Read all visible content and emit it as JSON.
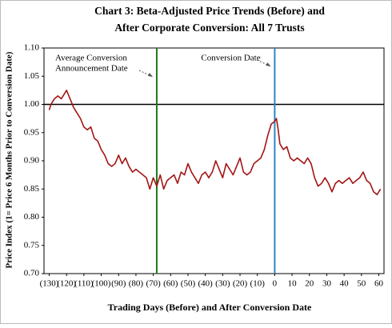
{
  "chart_data": {
    "type": "line",
    "title": [
      "Chart 3:  Beta-Adjusted Price Trends (Before) and",
      "After Corporate Conversion:  All 7 Trusts"
    ],
    "x_label": "Trading Days (Before) and After Conversion Date",
    "y_label": "Price Index (1= Price 6 Months Prior to Conversion Date)",
    "x": [
      -130,
      -129,
      -127,
      -125,
      -123,
      -121,
      -120,
      -118,
      -116,
      -114,
      -112,
      -110,
      -108,
      -106,
      -104,
      -102,
      -100,
      -98,
      -96,
      -94,
      -92,
      -90,
      -88,
      -86,
      -84,
      -82,
      -80,
      -78,
      -76,
      -74,
      -72,
      -70,
      -68,
      -66,
      -64,
      -62,
      -60,
      -58,
      -56,
      -54,
      -52,
      -50,
      -48,
      -46,
      -44,
      -42,
      -40,
      -38,
      -36,
      -34,
      -32,
      -30,
      -28,
      -26,
      -24,
      -22,
      -20,
      -18,
      -16,
      -14,
      -12,
      -10,
      -8,
      -6,
      -4,
      -2,
      0,
      1,
      2,
      3,
      5,
      7,
      9,
      11,
      13,
      15,
      17,
      19,
      21,
      23,
      25,
      27,
      29,
      31,
      33,
      35,
      37,
      39,
      41,
      43,
      45,
      47,
      49,
      51,
      53,
      55,
      57,
      59,
      61
    ],
    "series": [
      {
        "color": "#a31515",
        "values": [
          0.99,
          1.0,
          1.01,
          1.015,
          1.01,
          1.02,
          1.025,
          1.01,
          0.995,
          0.985,
          0.975,
          0.96,
          0.955,
          0.96,
          0.94,
          0.935,
          0.92,
          0.91,
          0.895,
          0.89,
          0.895,
          0.91,
          0.895,
          0.905,
          0.89,
          0.88,
          0.885,
          0.88,
          0.875,
          0.87,
          0.85,
          0.87,
          0.855,
          0.875,
          0.85,
          0.865,
          0.87,
          0.875,
          0.86,
          0.88,
          0.875,
          0.895,
          0.88,
          0.87,
          0.86,
          0.875,
          0.88,
          0.87,
          0.88,
          0.9,
          0.885,
          0.87,
          0.895,
          0.885,
          0.875,
          0.89,
          0.905,
          0.88,
          0.875,
          0.88,
          0.895,
          0.9,
          0.905,
          0.92,
          0.945,
          0.965,
          0.97,
          0.975,
          0.955,
          0.93,
          0.92,
          0.925,
          0.905,
          0.9,
          0.905,
          0.9,
          0.895,
          0.905,
          0.895,
          0.87,
          0.855,
          0.86,
          0.87,
          0.86,
          0.845,
          0.86,
          0.865,
          0.86,
          0.865,
          0.87,
          0.86,
          0.865,
          0.87,
          0.88,
          0.865,
          0.86,
          0.845,
          0.84,
          0.85
        ]
      }
    ],
    "xlim": [
      -133,
      63
    ],
    "ylim": [
      0.7,
      1.1
    ],
    "xticks": [
      {
        "value": -130,
        "label": "(130)"
      },
      {
        "value": -120,
        "label": "(120)"
      },
      {
        "value": -110,
        "label": "(110)"
      },
      {
        "value": -100,
        "label": "(100)"
      },
      {
        "value": -90,
        "label": "(90)"
      },
      {
        "value": -80,
        "label": "(80)"
      },
      {
        "value": -70,
        "label": "(70)"
      },
      {
        "value": -60,
        "label": "(60)"
      },
      {
        "value": -50,
        "label": "(50)"
      },
      {
        "value": -40,
        "label": "(40)"
      },
      {
        "value": -30,
        "label": "(30)"
      },
      {
        "value": -20,
        "label": "(20)"
      },
      {
        "value": -10,
        "label": "(10)"
      },
      0,
      10,
      20,
      30,
      40,
      50,
      60
    ],
    "yticks": [
      {
        "value": 0.7,
        "label": "0.70"
      },
      0.75,
      {
        "value": 0.8,
        "label": "0.80"
      },
      0.85,
      {
        "value": 0.9,
        "label": "0.90"
      },
      0.95,
      {
        "value": 1.0,
        "label": "1.00"
      },
      1.05,
      {
        "value": 1.1,
        "label": "1.10"
      }
    ],
    "hline": {
      "y": 1.0,
      "color": "#000000"
    },
    "vlines": [
      {
        "x": -68,
        "color": "#1a7a1a",
        "label": [
          "Average Conversion",
          "Announcement Date"
        ]
      },
      {
        "x": 0,
        "color": "#2e86c1",
        "label": [
          "Conversion Date"
        ]
      }
    ]
  }
}
